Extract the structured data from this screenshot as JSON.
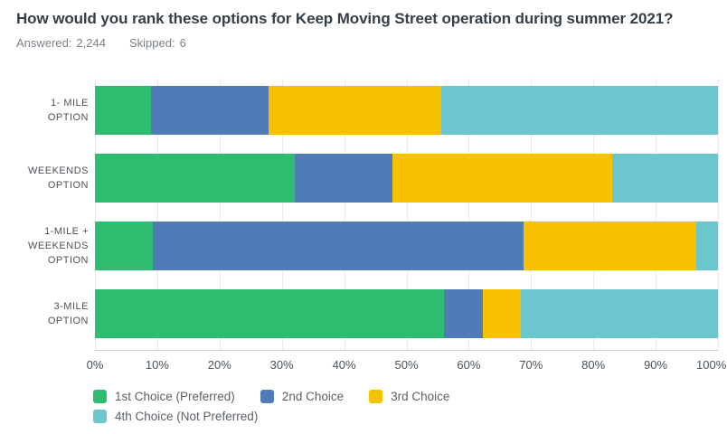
{
  "header": {
    "title": "How would you rank these options for Keep Moving Street operation during summer 2021?",
    "answered_label": "Answered:",
    "answered_value": "2,244",
    "skipped_label": "Skipped:",
    "skipped_value": "6"
  },
  "colors": {
    "first_choice": "#2EBC70",
    "second_choice": "#4F7CB6",
    "third_choice": "#F8C100",
    "fourth_choice": "#6BC7CD",
    "gridline": "#E9EAEB",
    "axis_line": "#C9CCCE",
    "title_text": "#333E48",
    "muted_text": "#79828A",
    "category_label_text": "#4C5258"
  },
  "chart_data": {
    "type": "bar",
    "orientation": "horizontal",
    "stacked": true,
    "grid": true,
    "legend_position": "bottom-left",
    "xlim": [
      0,
      100
    ],
    "x_ticks": [
      "0%",
      "10%",
      "20%",
      "30%",
      "40%",
      "50%",
      "60%",
      "70%",
      "80%",
      "90%",
      "100%"
    ],
    "categories": [
      "1- MILE OPTION",
      "WEEKENDS OPTION",
      "1-MILE + WEEKENDS OPTION",
      "3-MILE OPTION"
    ],
    "category_label_lines": [
      [
        "1- MILE",
        "OPTION"
      ],
      [
        "WEEKENDS",
        "OPTION"
      ],
      [
        "1-MILE +",
        "WEEKENDS",
        "OPTION"
      ],
      [
        "3-MILE",
        "OPTION"
      ]
    ],
    "series": [
      {
        "name": "1st Choice (Preferred)",
        "color": "#2EBC70",
        "values": [
          9.0,
          32.1,
          9.3,
          56.0
        ]
      },
      {
        "name": "2nd Choice",
        "color": "#4F7CB6",
        "values": [
          18.8,
          15.6,
          59.5,
          6.2
        ]
      },
      {
        "name": "3rd Choice",
        "color": "#F8C100",
        "values": [
          27.8,
          35.3,
          27.7,
          6.2
        ]
      },
      {
        "name": "4th Choice (Not Preferred)",
        "color": "#6BC7CD",
        "values": [
          44.4,
          17.0,
          3.5,
          31.6
        ]
      }
    ]
  }
}
